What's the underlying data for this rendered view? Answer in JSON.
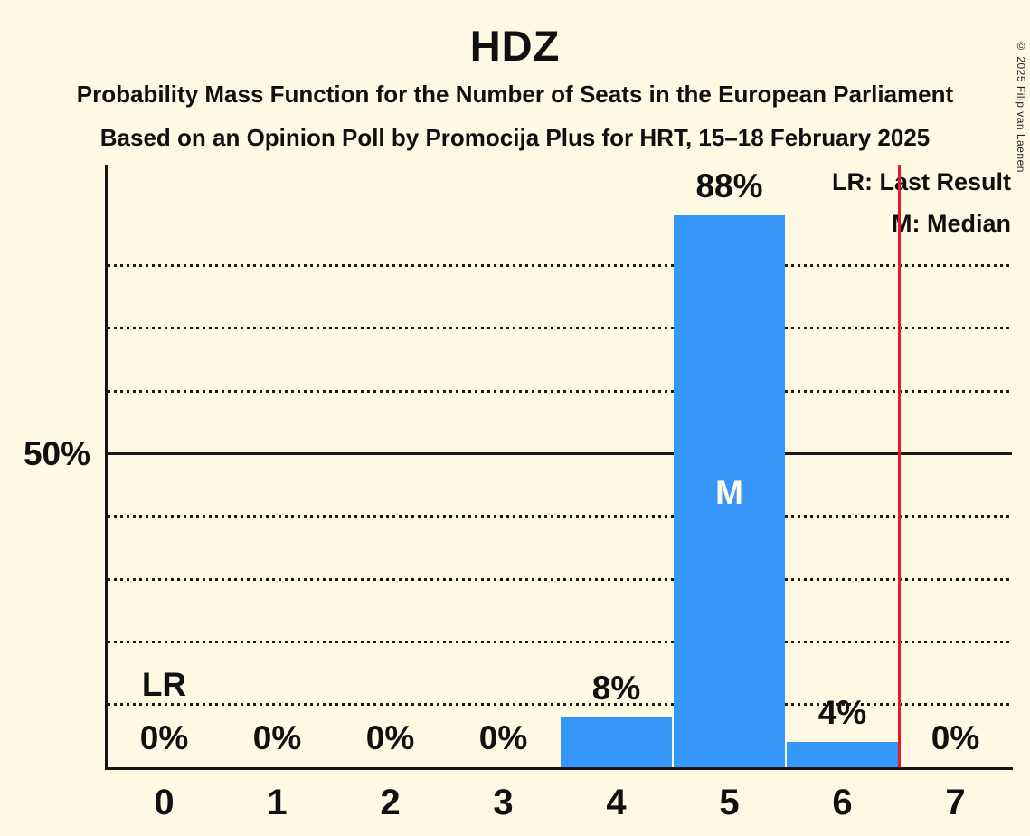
{
  "title": "HDZ",
  "subtitle1": "Probability Mass Function for the Number of Seats in the European Parliament",
  "subtitle2": "Based on an Opinion Poll by Promocija Plus for HRT, 15–18 February 2025",
  "copyright": "© 2025 Filip van Laenen",
  "legend": {
    "lr_label": "LR: Last Result",
    "median_label": "M: Median"
  },
  "colors": {
    "background": "#fdf9e3",
    "bar": "#3697fa",
    "last_result_line": "#e8192d",
    "text": "#101010",
    "median_text": "#fdf9e3",
    "grid": "#1a1a1a"
  },
  "chart_data": {
    "type": "bar",
    "title": "HDZ",
    "categories": [
      "0",
      "1",
      "2",
      "3",
      "4",
      "5",
      "6",
      "7"
    ],
    "values": [
      0,
      0,
      0,
      0,
      8,
      88,
      4,
      0
    ],
    "value_labels": [
      "0%",
      "0%",
      "0%",
      "0%",
      "8%",
      "88%",
      "4%",
      "0%"
    ],
    "ylim": [
      0,
      96
    ],
    "y_axis": {
      "tick_label": "50%",
      "tick_value": 50
    },
    "gridlines_dotted_pct": [
      10,
      20,
      30,
      40,
      60,
      70,
      80
    ],
    "gridline_solid_pct": 50,
    "legend_position": "top-right",
    "median_seat_index": 5,
    "median_marker": "M",
    "last_result_label": "LR",
    "last_result_label_seat_index": 0,
    "last_result_line_x": 6.5
  }
}
